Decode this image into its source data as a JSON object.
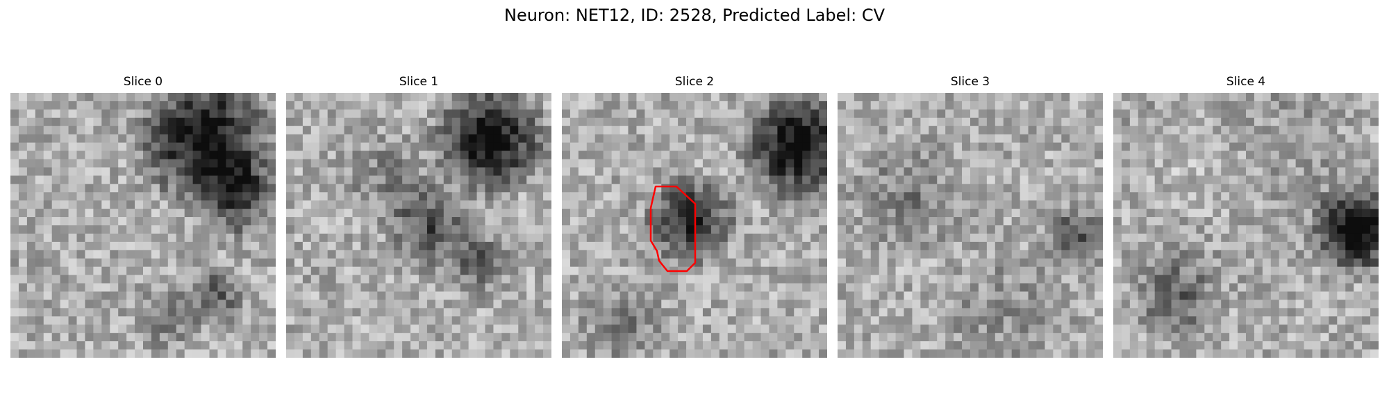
{
  "figure": {
    "title": "Neuron: NET12, ID: 2528, Predicted Label: CV"
  },
  "slices": [
    {
      "label": "Slice 0"
    },
    {
      "label": "Slice 1"
    },
    {
      "label": "Slice 2",
      "has_outline": true,
      "outline_color": "#ff0000"
    },
    {
      "label": "Slice 3"
    },
    {
      "label": "Slice 4"
    }
  ]
}
